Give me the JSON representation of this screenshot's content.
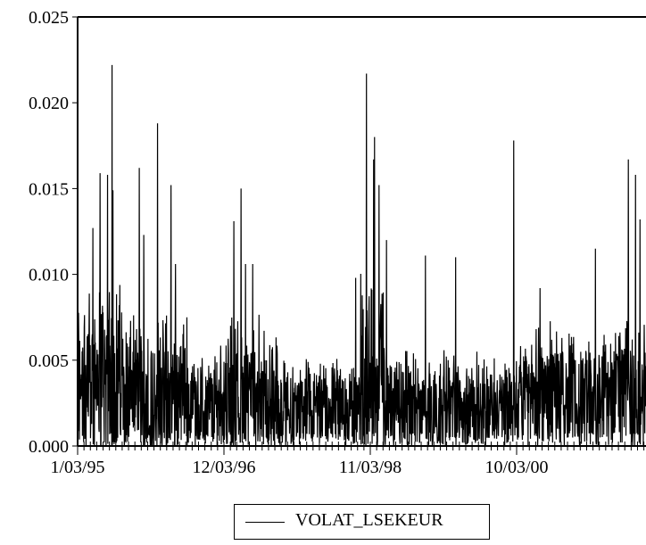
{
  "chart_data": {
    "type": "line",
    "title": "",
    "xlabel": "",
    "ylabel": "",
    "ylim": [
      0.0,
      0.025
    ],
    "y_ticks": [
      "0.000",
      "0.005",
      "0.010",
      "0.015",
      "0.020",
      "0.025"
    ],
    "x_tick_labels": [
      "1/03/95",
      "12/03/96",
      "11/03/98",
      "10/03/00"
    ],
    "x_range": [
      "1/03/95",
      "6/2002"
    ],
    "grid": false,
    "legend_position": "bottom-center",
    "series": [
      {
        "name": "VOLAT_LSEKEUR",
        "color": "#000000",
        "noise_floor": 0.0,
        "regimes": [
          {
            "from": "1/03/95",
            "to": "8/95",
            "base": 0.0045,
            "spread": 0.006
          },
          {
            "from": "8/95",
            "to": "6/96",
            "base": 0.0035,
            "spread": 0.0045
          },
          {
            "from": "6/96",
            "to": "11/96",
            "base": 0.0028,
            "spread": 0.003
          },
          {
            "from": "11/96",
            "to": "8/97",
            "base": 0.0035,
            "spread": 0.0045
          },
          {
            "from": "8/97",
            "to": "9/98",
            "base": 0.0026,
            "spread": 0.0028
          },
          {
            "from": "9/98",
            "to": "1/99",
            "base": 0.0048,
            "spread": 0.0065
          },
          {
            "from": "1/99",
            "to": "10/00",
            "base": 0.0028,
            "spread": 0.003
          },
          {
            "from": "10/00",
            "to": "6/02",
            "base": 0.0036,
            "spread": 0.004
          }
        ],
        "spikes": [
          {
            "date": "3/95",
            "value": 0.0127
          },
          {
            "date": "4/95",
            "value": 0.0159
          },
          {
            "date": "5/95",
            "value": 0.0158
          },
          {
            "date": "6/95",
            "value": 0.0222
          },
          {
            "date": "6/95",
            "value": 0.0149
          },
          {
            "date": "10/95",
            "value": 0.0162
          },
          {
            "date": "11/95",
            "value": 0.0123
          },
          {
            "date": "1/96",
            "value": 0.0188
          },
          {
            "date": "3/96",
            "value": 0.0152
          },
          {
            "date": "4/96",
            "value": 0.0106
          },
          {
            "date": "1/97",
            "value": 0.0131
          },
          {
            "date": "2/97",
            "value": 0.015
          },
          {
            "date": "3/97",
            "value": 0.0106
          },
          {
            "date": "4/97",
            "value": 0.0106
          },
          {
            "date": "8/98",
            "value": 0.0098
          },
          {
            "date": "10/98",
            "value": 0.0217
          },
          {
            "date": "11/98",
            "value": 0.0167
          },
          {
            "date": "11/98",
            "value": 0.018
          },
          {
            "date": "12/98",
            "value": 0.0152
          },
          {
            "date": "1/99",
            "value": 0.012
          },
          {
            "date": "7/99",
            "value": 0.0111
          },
          {
            "date": "12/99",
            "value": 0.011
          },
          {
            "date": "9/00",
            "value": 0.0178
          },
          {
            "date": "1/01",
            "value": 0.0092
          },
          {
            "date": "10/01",
            "value": 0.0115
          },
          {
            "date": "3/02",
            "value": 0.0167
          },
          {
            "date": "4/02",
            "value": 0.0158
          },
          {
            "date": "5/02",
            "value": 0.0132
          }
        ]
      }
    ]
  }
}
